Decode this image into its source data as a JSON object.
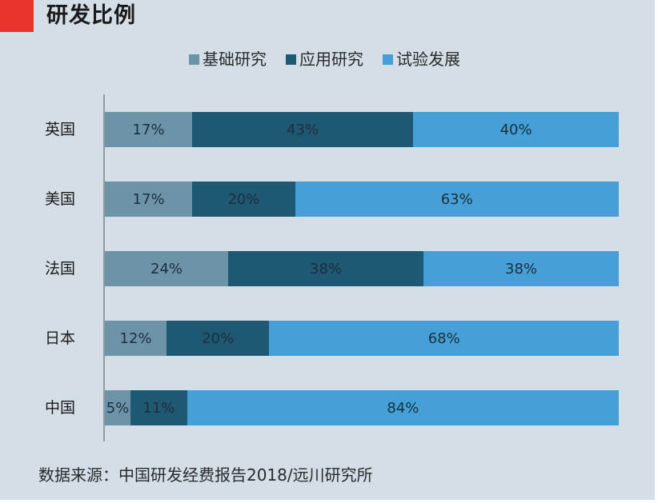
{
  "title": "研发比例",
  "source": "数据来源：中国研发经费报告2018/远川研究所",
  "colors": {
    "background": "#d3dee7",
    "title_marker": "#e8332a",
    "basic": "#6d93a9",
    "applied": "#1f5872",
    "experimental": "#44a0d6"
  },
  "legend": [
    {
      "label": "基础研究",
      "color": "#6d93a9"
    },
    {
      "label": "应用研究",
      "color": "#1f5872"
    },
    {
      "label": "试验发展",
      "color": "#44a0d6"
    }
  ],
  "rows": [
    {
      "country": "英国",
      "values": [
        17,
        43,
        40
      ],
      "labels": [
        "17%",
        "43%",
        "40%"
      ]
    },
    {
      "country": "美国",
      "values": [
        17,
        20,
        63
      ],
      "labels": [
        "17%",
        "20%",
        "63%"
      ]
    },
    {
      "country": "法国",
      "values": [
        24,
        38,
        38
      ],
      "labels": [
        "24%",
        "38%",
        "38%"
      ]
    },
    {
      "country": "日本",
      "values": [
        12,
        20,
        68
      ],
      "labels": [
        "12%",
        "20%",
        "68%"
      ]
    },
    {
      "country": "中国",
      "values": [
        5,
        11,
        84
      ],
      "labels": [
        "5%",
        "11%",
        "84%"
      ]
    }
  ],
  "chart_data": {
    "type": "bar",
    "orientation": "horizontal",
    "stacked": true,
    "percent_stacked": true,
    "title": "研发比例",
    "categories": [
      "英国",
      "美国",
      "法国",
      "日本",
      "中国"
    ],
    "series": [
      {
        "name": "基础研究",
        "values": [
          17,
          17,
          24,
          12,
          5
        ],
        "color": "#6d93a9"
      },
      {
        "name": "应用研究",
        "values": [
          43,
          20,
          38,
          20,
          11
        ],
        "color": "#1f5872"
      },
      {
        "name": "试验发展",
        "values": [
          40,
          63,
          38,
          68,
          84
        ],
        "color": "#44a0d6"
      }
    ],
    "xlabel": "",
    "ylabel": "",
    "xlim": [
      0,
      100
    ],
    "value_format": "percent",
    "data_labels": true,
    "grid": false,
    "legend_position": "top",
    "annotation": "数据来源：中国研发经费报告2018/远川研究所"
  }
}
